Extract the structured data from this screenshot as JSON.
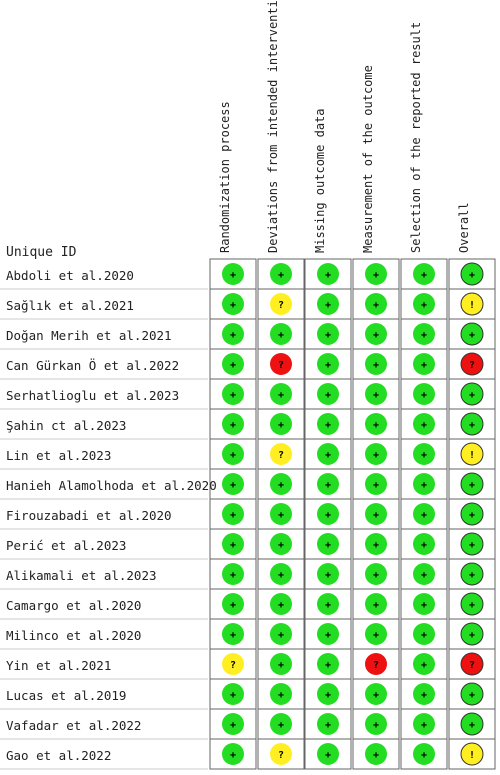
{
  "figure": {
    "id_header": "Unique ID",
    "domains": [
      "Randomization process",
      "Deviations from intended interventions",
      "Missing outcome data",
      "Measurement of the outcome",
      "Selection of the reported result",
      "Overall"
    ],
    "symbols": {
      "low": "+",
      "some": "?",
      "high": "?",
      "overall_some": "!"
    },
    "colors": {
      "low": "#22dd22",
      "some": "#ffee22",
      "high": "#ee1111",
      "grid": "#666666"
    }
  },
  "chart_data": {
    "type": "table",
    "rows": [
      {
        "study": "Abdoli et al.2020",
        "ratings": [
          "low",
          "low",
          "low",
          "low",
          "low",
          "low"
        ]
      },
      {
        "study": "Sağlık et al.2021",
        "ratings": [
          "low",
          "some",
          "low",
          "low",
          "low",
          "some"
        ]
      },
      {
        "study": "Doğan Merih et al.2021",
        "ratings": [
          "low",
          "low",
          "low",
          "low",
          "low",
          "low"
        ]
      },
      {
        "study": "Can Gürkan Ö et al.2022",
        "ratings": [
          "low",
          "high",
          "low",
          "low",
          "low",
          "high"
        ]
      },
      {
        "study": "Serhatlioglu et al.2023",
        "ratings": [
          "low",
          "low",
          "low",
          "low",
          "low",
          "low"
        ]
      },
      {
        "study": "Şahin ct al.2023",
        "ratings": [
          "low",
          "low",
          "low",
          "low",
          "low",
          "low"
        ]
      },
      {
        "study": "Lin et al.2023",
        "ratings": [
          "low",
          "some",
          "low",
          "low",
          "low",
          "some"
        ]
      },
      {
        "study": "Hanieh Alamolhoda et al.2020",
        "ratings": [
          "low",
          "low",
          "low",
          "low",
          "low",
          "low"
        ]
      },
      {
        "study": "Firouzabadi et al.2020",
        "ratings": [
          "low",
          "low",
          "low",
          "low",
          "low",
          "low"
        ]
      },
      {
        "study": "Perić et al.2023",
        "ratings": [
          "low",
          "low",
          "low",
          "low",
          "low",
          "low"
        ]
      },
      {
        "study": "Alikamali et al.2023",
        "ratings": [
          "low",
          "low",
          "low",
          "low",
          "low",
          "low"
        ]
      },
      {
        "study": "Camargo et al.2020",
        "ratings": [
          "low",
          "low",
          "low",
          "low",
          "low",
          "low"
        ]
      },
      {
        "study": "Milinco et al.2020",
        "ratings": [
          "low",
          "low",
          "low",
          "low",
          "low",
          "low"
        ]
      },
      {
        "study": "Yin et al.2021",
        "ratings": [
          "some",
          "low",
          "low",
          "high",
          "low",
          "high"
        ]
      },
      {
        "study": "Lucas et al.2019",
        "ratings": [
          "low",
          "low",
          "low",
          "low",
          "low",
          "low"
        ]
      },
      {
        "study": "Vafadar et al.2022",
        "ratings": [
          "low",
          "low",
          "low",
          "low",
          "low",
          "low"
        ]
      },
      {
        "study": "Gao et al.2022",
        "ratings": [
          "low",
          "some",
          "low",
          "low",
          "low",
          "some"
        ]
      }
    ]
  }
}
